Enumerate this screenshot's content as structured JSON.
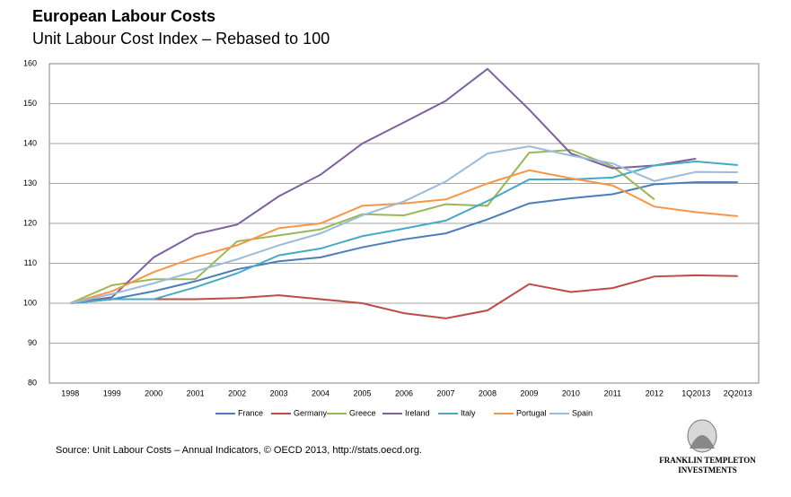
{
  "chart_data": {
    "type": "line",
    "title": "European Labour Costs",
    "subtitle": "Unit Labour Cost Index – Rebased to 100",
    "categories": [
      "1998",
      "1999",
      "2000",
      "2001",
      "2002",
      "2003",
      "2004",
      "2005",
      "2006",
      "2007",
      "2008",
      "2009",
      "2010",
      "2011",
      "2012",
      "1Q2013",
      "2Q2013"
    ],
    "series": [
      {
        "name": "France",
        "color": "#4a7ebb",
        "values": [
          100,
          101,
          103,
          105.5,
          108.5,
          110.5,
          111.5,
          114,
          116,
          117.5,
          121,
          125,
          126.3,
          127.3,
          129.8,
          130.3,
          130.3
        ]
      },
      {
        "name": "Germany",
        "color": "#be4b48",
        "values": [
          100,
          101,
          101,
          101,
          101.3,
          102,
          101,
          100,
          97.5,
          96.2,
          98.2,
          104.8,
          102.8,
          103.8,
          106.7,
          107,
          106.8
        ]
      },
      {
        "name": "Greece",
        "color": "#98b954",
        "values": [
          100,
          104.5,
          106,
          106,
          115.5,
          117,
          118.5,
          122.3,
          122,
          124.8,
          124.4,
          137.7,
          138.4,
          134.3,
          126,
          null,
          null
        ]
      },
      {
        "name": "Ireland",
        "color": "#7d60a0",
        "values": [
          100,
          101.5,
          111.5,
          117.3,
          119.7,
          126.8,
          132.2,
          140,
          145.3,
          150.7,
          158.7,
          148.5,
          137.5,
          133.8,
          134.5,
          136.2,
          null
        ]
      },
      {
        "name": "Italy",
        "color": "#46aac5",
        "values": [
          100,
          101,
          101,
          104,
          107.5,
          112,
          113.7,
          116.8,
          118.7,
          120.7,
          125.6,
          131,
          131,
          131.5,
          134.5,
          135.5,
          134.6
        ]
      },
      {
        "name": "Portugal",
        "color": "#f79646",
        "values": [
          100,
          103,
          107.8,
          111.5,
          114.5,
          118.8,
          120,
          124.4,
          125,
          126,
          130,
          133.3,
          131.3,
          129.5,
          124.2,
          122.8,
          121.8
        ]
      },
      {
        "name": "Spain",
        "color": "#9bbbd9",
        "values": [
          100,
          102.3,
          105,
          108,
          111,
          114.5,
          117.5,
          122,
          125.5,
          130.5,
          137.5,
          139.3,
          137,
          135,
          130.6,
          132.9,
          132.8
        ]
      }
    ],
    "ylim": [
      80,
      160
    ],
    "yticks": [
      80,
      90,
      100,
      110,
      120,
      130,
      140,
      150,
      160
    ],
    "grid": true,
    "legend": "bottom",
    "source": "Source: Unit Labour Costs – Annual Indicators, © OECD 2013, http://stats.oecd.org.",
    "logo": [
      "FRANKLIN TEMPLETON",
      "INVESTMENTS"
    ]
  }
}
